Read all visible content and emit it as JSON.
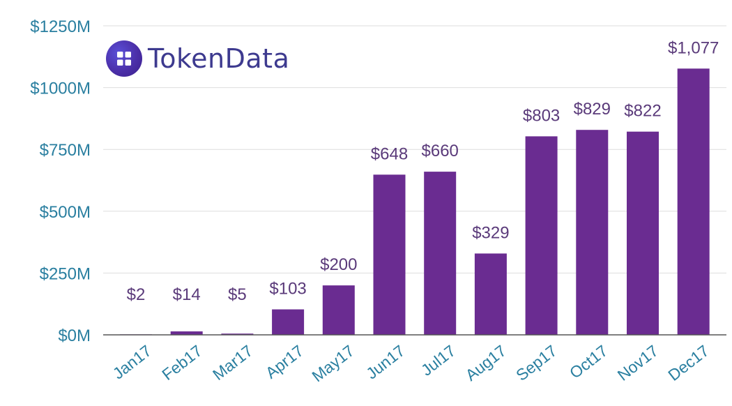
{
  "brand": {
    "name": "TokenData",
    "icon": "grid-four-squares-icon",
    "color": "#4b2fa8"
  },
  "colors": {
    "bar": "#6a2c91",
    "bar_label": "#5a3a7a",
    "axis_text": "#2a7fa0",
    "grid": "#dddddd",
    "baseline": "#555555"
  },
  "chart_data": {
    "type": "bar",
    "categories": [
      "Jan17",
      "Feb17",
      "Mar17",
      "Apr17",
      "May17",
      "Jun17",
      "Jul17",
      "Aug17",
      "Sep17",
      "Oct17",
      "Nov17",
      "Dec17"
    ],
    "values": [
      2,
      14,
      5,
      103,
      200,
      648,
      660,
      329,
      803,
      829,
      822,
      1077
    ],
    "data_labels": [
      "$2",
      "$14",
      "$5",
      "$103",
      "$200",
      "$648",
      "$660",
      "$329",
      "$803",
      "$829",
      "$822",
      "$1,077"
    ],
    "ylim": [
      0,
      1250
    ],
    "yticks": [
      0,
      250,
      500,
      750,
      1000,
      1250
    ],
    "ytick_labels": [
      "$0M",
      "$250M",
      "$500M",
      "$750M",
      "$1000M",
      "$1250M"
    ],
    "grid": true
  }
}
